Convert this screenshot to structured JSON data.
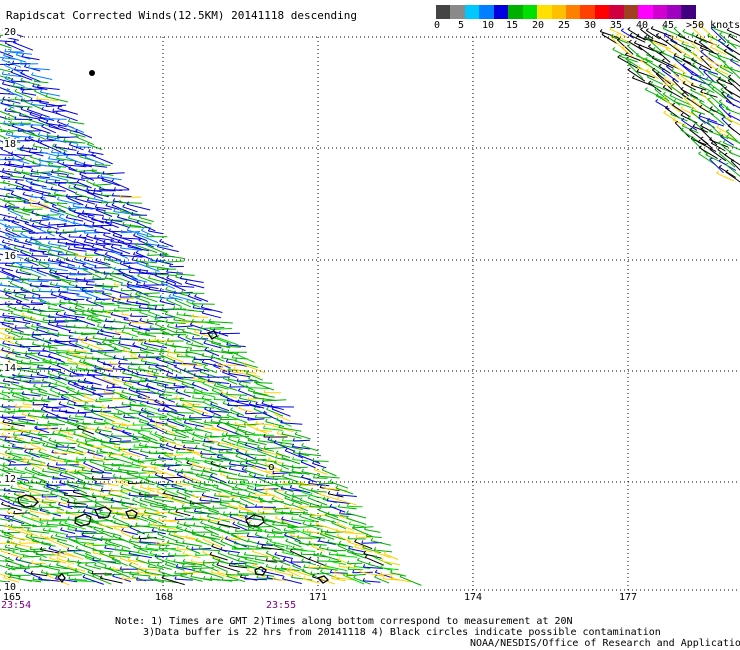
{
  "title": "Rapidscat Corrected Winds(12.5KM) 20141118 descending",
  "colorbar": {
    "colors": [
      "#444444",
      "#8a8a8a",
      "#00c8ff",
      "#0080ff",
      "#0000e0",
      "#00b000",
      "#00e000",
      "#ffe000",
      "#ffc000",
      "#ff8000",
      "#ff4000",
      "#ff0000",
      "#d00040",
      "#a04020",
      "#ff00ff",
      "#d000d0",
      "#a000c0",
      "#400080"
    ],
    "labels": [
      "0",
      "5",
      "10",
      "15",
      "20",
      "25",
      "30",
      "35",
      "40",
      "45",
      ">50 knots"
    ]
  },
  "axes": {
    "lat_labels": [
      "20",
      "18",
      "16",
      "14",
      "12",
      "10"
    ],
    "lon_labels": [
      "165",
      "168",
      "171",
      "174",
      "177"
    ]
  },
  "times": [
    "23:54",
    "23:55"
  ],
  "notes": [
    "Note: 1) Times are GMT 2)Times along bottom correspond to measurement at 20N",
    "3)Data buffer is 22 hrs from 20141118 4) Black circles indicate possible contamination"
  ],
  "credit": "NOAA/NESDIS/Office of Research and Applications"
}
